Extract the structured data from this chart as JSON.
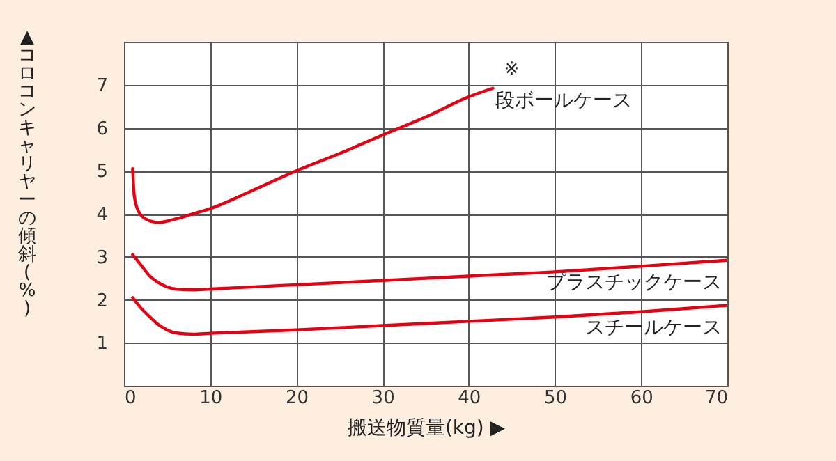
{
  "chart_data": {
    "type": "line",
    "xlabel": "搬送物質量(kg) ▶",
    "ylabel": "▲コロコンキャリヤーの傾斜(%)",
    "xlim": [
      0,
      70
    ],
    "xticks": [
      0,
      10,
      20,
      30,
      40,
      50,
      60,
      70
    ],
    "ylim": [
      0,
      8
    ],
    "yticks": [
      1,
      2,
      3,
      4,
      5,
      6,
      7
    ],
    "grid": true,
    "marker": "none",
    "line_style": "solid",
    "annotations": [
      "※"
    ],
    "series": [
      {
        "name": "段ボールケース",
        "color": "#e60012",
        "x": [
          1,
          1.2,
          1.7,
          2.5,
          4,
          6,
          8,
          10,
          15,
          20,
          25,
          30,
          35,
          40,
          42.8
        ],
        "values": [
          5.05,
          4.4,
          4.05,
          3.88,
          3.8,
          3.88,
          4.0,
          4.12,
          4.55,
          5.0,
          5.4,
          5.83,
          6.25,
          6.72,
          6.92
        ]
      },
      {
        "name": "プラスチックケース",
        "color": "#e60012",
        "x": [
          1,
          2,
          3,
          4,
          5,
          6,
          8,
          10,
          20,
          30,
          40,
          50,
          60,
          70
        ],
        "values": [
          3.05,
          2.8,
          2.55,
          2.4,
          2.3,
          2.25,
          2.23,
          2.25,
          2.35,
          2.45,
          2.55,
          2.65,
          2.78,
          2.92
        ]
      },
      {
        "name": "スチールケース",
        "color": "#e60012",
        "x": [
          1,
          2,
          3,
          4,
          5,
          6,
          8,
          10,
          20,
          30,
          40,
          50,
          60,
          70
        ],
        "values": [
          2.05,
          1.8,
          1.6,
          1.42,
          1.3,
          1.23,
          1.2,
          1.22,
          1.3,
          1.4,
          1.5,
          1.6,
          1.72,
          1.87
        ]
      }
    ]
  }
}
